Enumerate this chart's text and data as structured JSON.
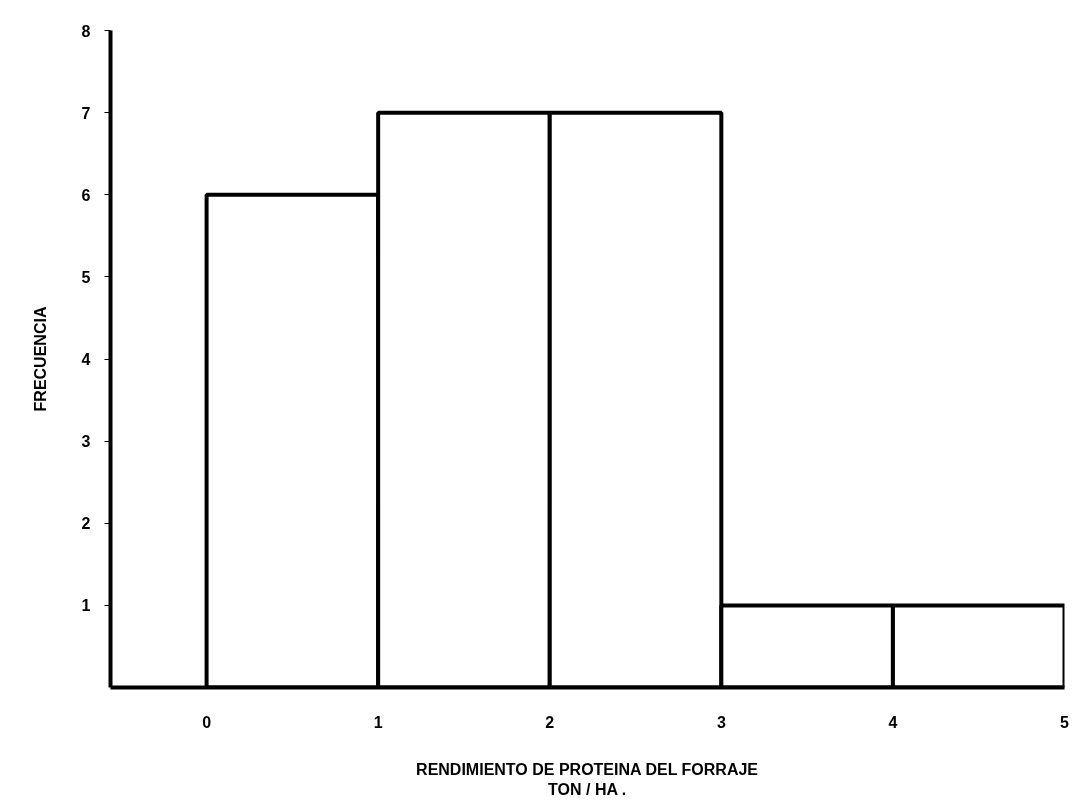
{
  "chart_data": {
    "type": "histogram",
    "xlabel": "RENDIMIENTO DE PROTEINA DEL FORRAJE\nTON / HA .",
    "ylabel": "FRECUENCIA",
    "bins": [
      0,
      1,
      2,
      3,
      4,
      5
    ],
    "values": [
      6,
      7,
      7,
      1,
      1
    ],
    "color": "#ffffff",
    "xlim": [
      -0.56,
      5
    ],
    "xticks": [
      0,
      1,
      2,
      3,
      4,
      5
    ],
    "ylim": [
      0,
      8
    ],
    "yticks": [
      1,
      2,
      3,
      4,
      5,
      6,
      7,
      8
    ],
    "grid": false
  }
}
